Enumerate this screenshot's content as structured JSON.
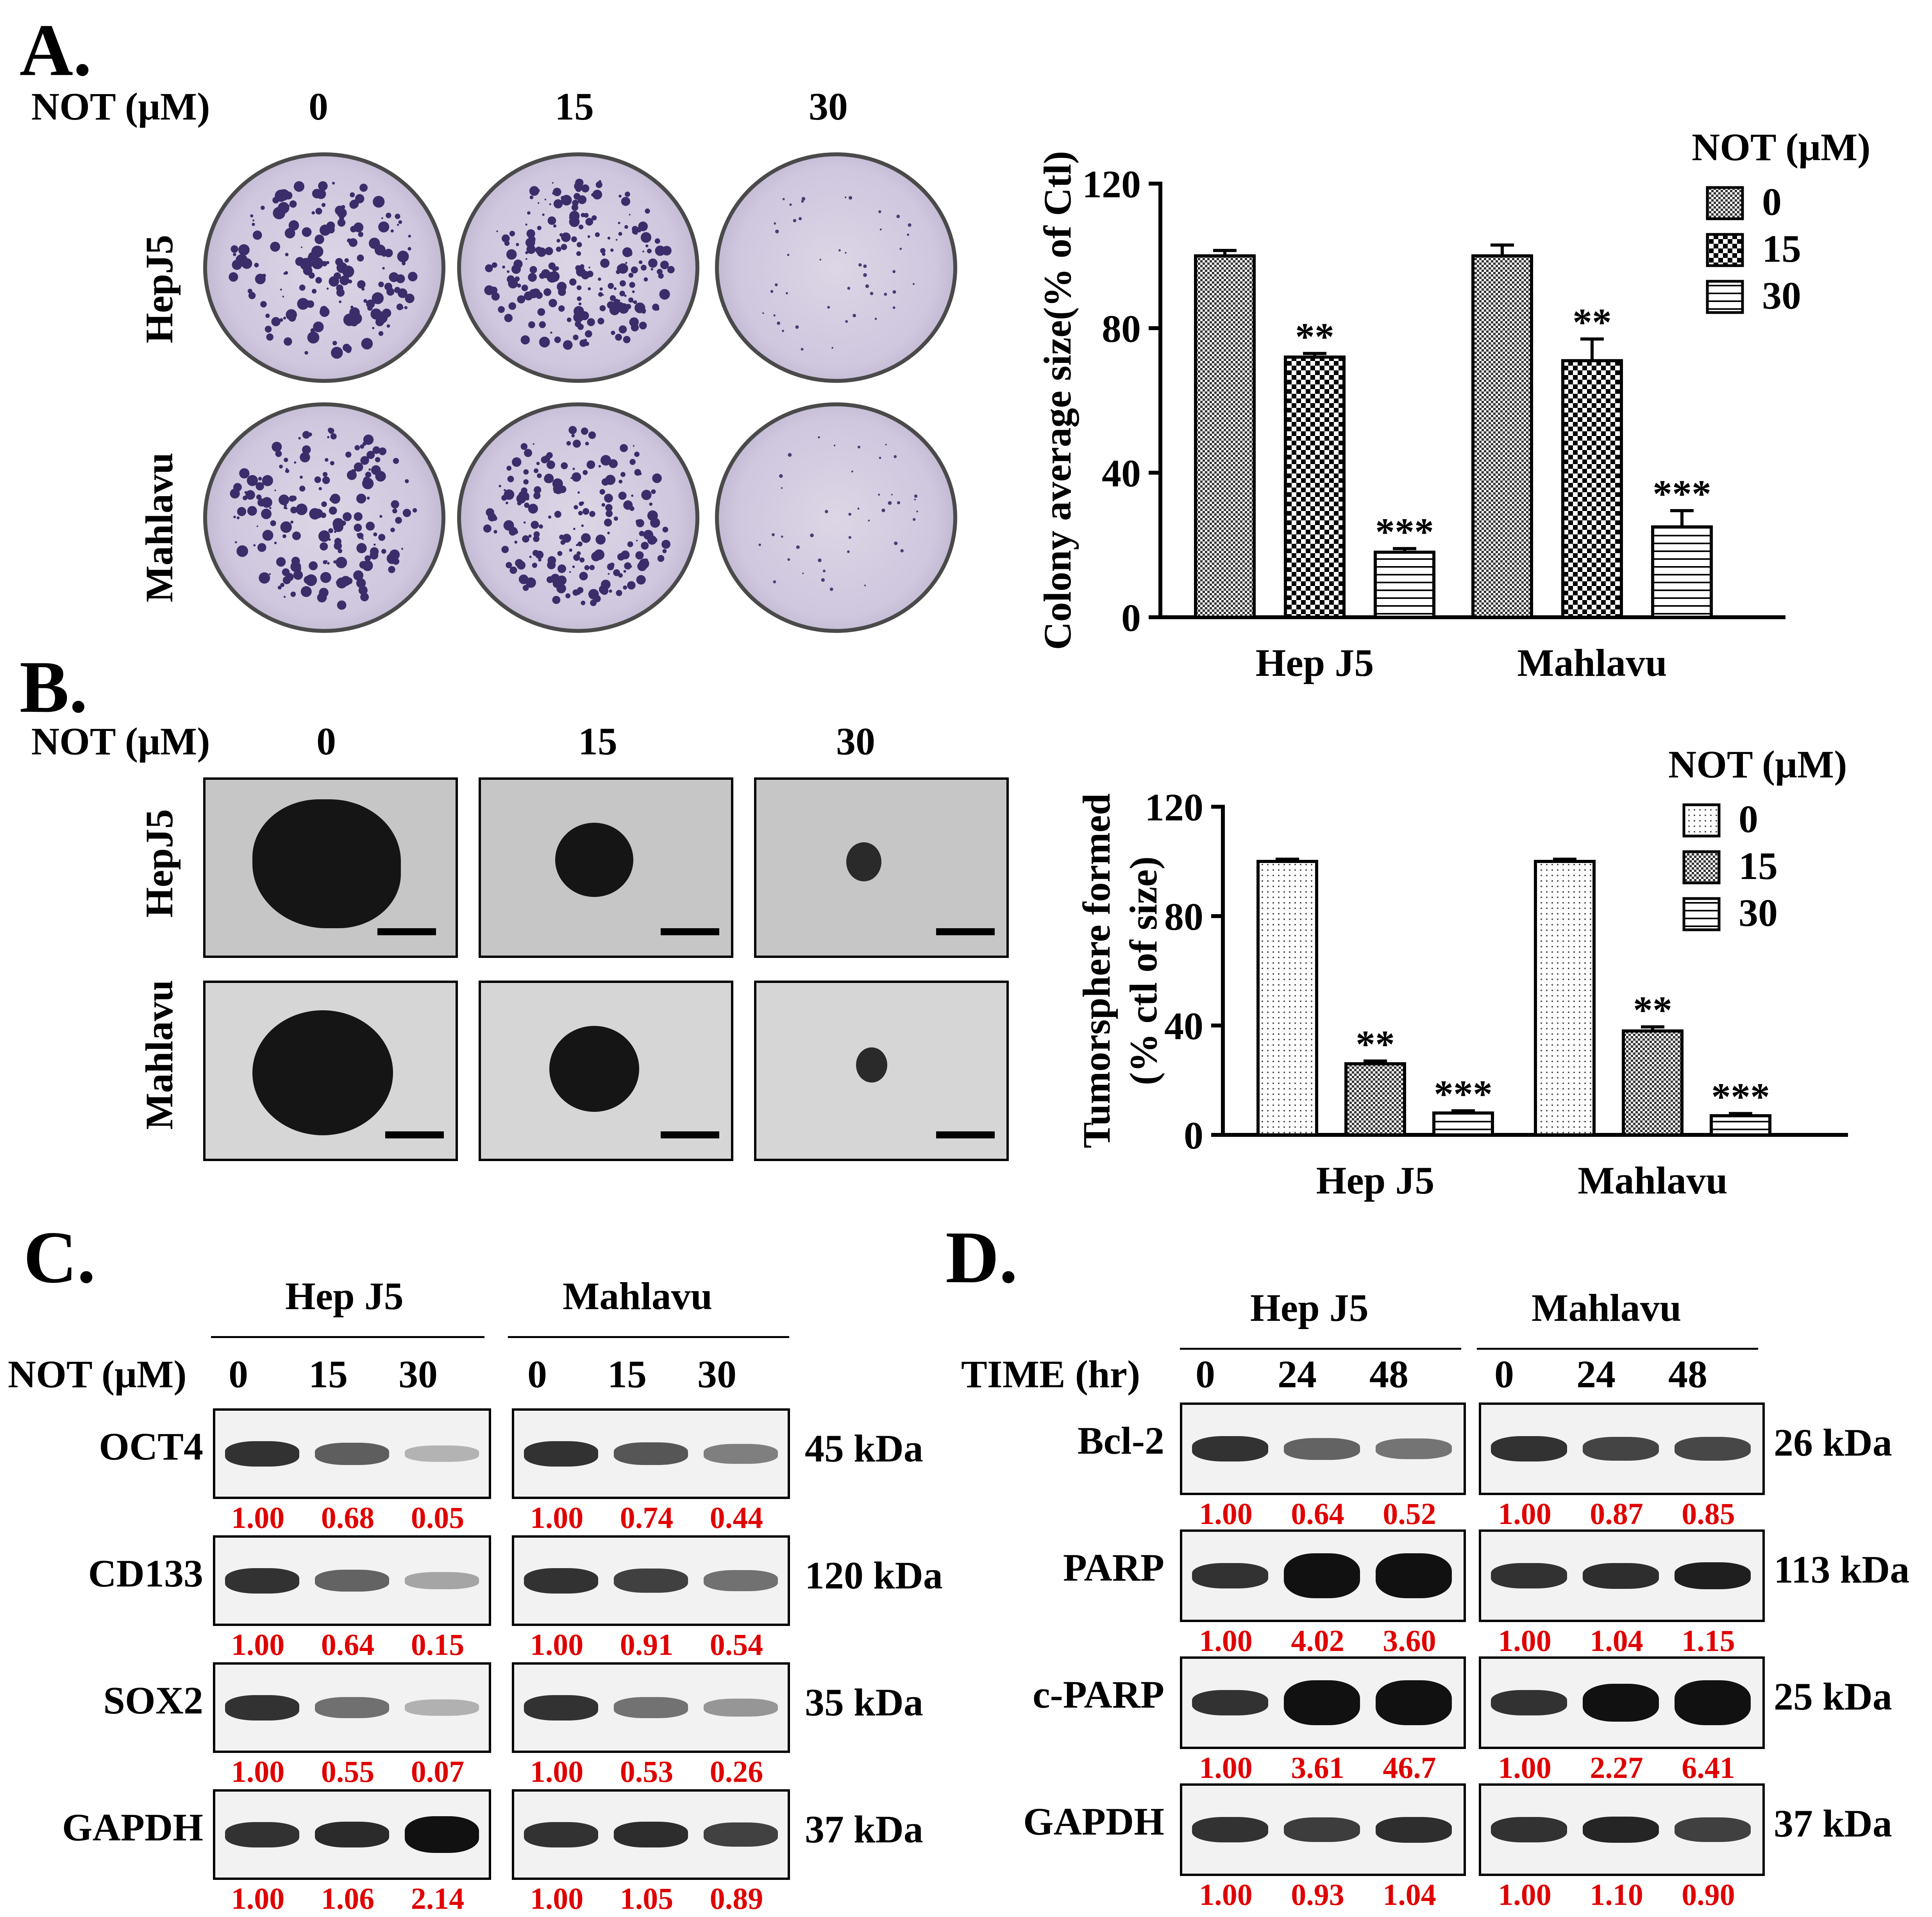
{
  "panel_a": {
    "letter": "A.",
    "dose_label": "NOT (μM)",
    "doses": [
      "0",
      "15",
      "30"
    ],
    "rows": [
      "HepJ5",
      "Mahlavu"
    ]
  },
  "panel_b": {
    "letter": "B.",
    "dose_label": "NOT (μM)",
    "doses": [
      "0",
      "15",
      "30"
    ],
    "rows": [
      "HepJ5",
      "Mahlavu"
    ]
  },
  "panel_c": {
    "letter": "C.",
    "groups": [
      "Hep J5",
      "Mahlavu"
    ],
    "dose_label": "NOT (μM)",
    "doses": [
      "0",
      "15",
      "30"
    ],
    "rows": [
      {
        "protein": "OCT4",
        "kda": "45 kDa",
        "hepj5": [
          "1.00",
          "0.68",
          "0.05"
        ],
        "mahlavu": [
          "1.00",
          "0.74",
          "0.44"
        ]
      },
      {
        "protein": "CD133",
        "kda": "120 kDa",
        "hepj5": [
          "1.00",
          "0.64",
          "0.15"
        ],
        "mahlavu": [
          "1.00",
          "0.91",
          "0.54"
        ]
      },
      {
        "protein": "SOX2",
        "kda": "35 kDa",
        "hepj5": [
          "1.00",
          "0.55",
          "0.07"
        ],
        "mahlavu": [
          "1.00",
          "0.53",
          "0.26"
        ]
      },
      {
        "protein": "GAPDH",
        "kda": "37 kDa",
        "hepj5": [
          "1.00",
          "1.06",
          "2.14"
        ],
        "mahlavu": [
          "1.00",
          "1.05",
          "0.89"
        ]
      }
    ]
  },
  "panel_d": {
    "letter": "D.",
    "groups": [
      "Hep J5",
      "Mahlavu"
    ],
    "time_label": "TIME (hr)",
    "times": [
      "0",
      "24",
      "48"
    ],
    "rows": [
      {
        "protein": "Bcl-2",
        "kda": "26 kDa",
        "hepj5": [
          "1.00",
          "0.64",
          "0.52"
        ],
        "mahlavu": [
          "1.00",
          "0.87",
          "0.85"
        ]
      },
      {
        "protein": "PARP",
        "kda": "113 kDa",
        "hepj5": [
          "1.00",
          "4.02",
          "3.60"
        ],
        "mahlavu": [
          "1.00",
          "1.04",
          "1.15"
        ]
      },
      {
        "protein": "c-PARP",
        "kda": "25 kDa",
        "hepj5": [
          "1.00",
          "3.61",
          "46.7"
        ],
        "mahlavu": [
          "1.00",
          "2.27",
          "6.41"
        ]
      },
      {
        "protein": "GAPDH",
        "kda": "37 kDa",
        "hepj5": [
          "1.00",
          "0.93",
          "1.04"
        ],
        "mahlavu": [
          "1.00",
          "1.10",
          "0.90"
        ]
      }
    ]
  },
  "colors": {
    "quant_red": "#e00000"
  },
  "chart_data": [
    {
      "type": "bar",
      "panel": "A",
      "ylabel": "Colony average size(% of Ctl)",
      "ylim": [
        0,
        120
      ],
      "yticks": [
        0,
        40,
        80,
        120
      ],
      "categories": [
        "Hep J5",
        "Mahlavu"
      ],
      "legend_title": "NOT (μM)",
      "legend_position": "top-right",
      "series": [
        {
          "name": "0",
          "values": [
            100,
            100
          ],
          "errors": [
            1.5,
            3
          ],
          "sig": [
            "",
            ""
          ]
        },
        {
          "name": "15",
          "values": [
            72,
            71
          ],
          "errors": [
            1,
            6
          ],
          "sig": [
            "**",
            "**"
          ]
        },
        {
          "name": "30",
          "values": [
            18,
            25
          ],
          "errors": [
            1,
            4.5
          ],
          "sig": [
            "***",
            "***"
          ]
        }
      ]
    },
    {
      "type": "bar",
      "panel": "B",
      "ylabel": "Tumorsphere formed (% ctl of size)",
      "ylim": [
        0,
        120
      ],
      "yticks": [
        0,
        40,
        80,
        120
      ],
      "categories": [
        "Hep J5",
        "Mahlavu"
      ],
      "legend_title": "NOT (μM)",
      "legend_position": "top-right",
      "series": [
        {
          "name": "0",
          "values": [
            100,
            100
          ],
          "errors": [
            0.8,
            0.8
          ],
          "sig": [
            "",
            ""
          ]
        },
        {
          "name": "15",
          "values": [
            26,
            38
          ],
          "errors": [
            1,
            1.5
          ],
          "sig": [
            "**",
            "**"
          ]
        },
        {
          "name": "30",
          "values": [
            8,
            7
          ],
          "errors": [
            0.8,
            0.8
          ],
          "sig": [
            "***",
            "***"
          ]
        }
      ]
    }
  ]
}
